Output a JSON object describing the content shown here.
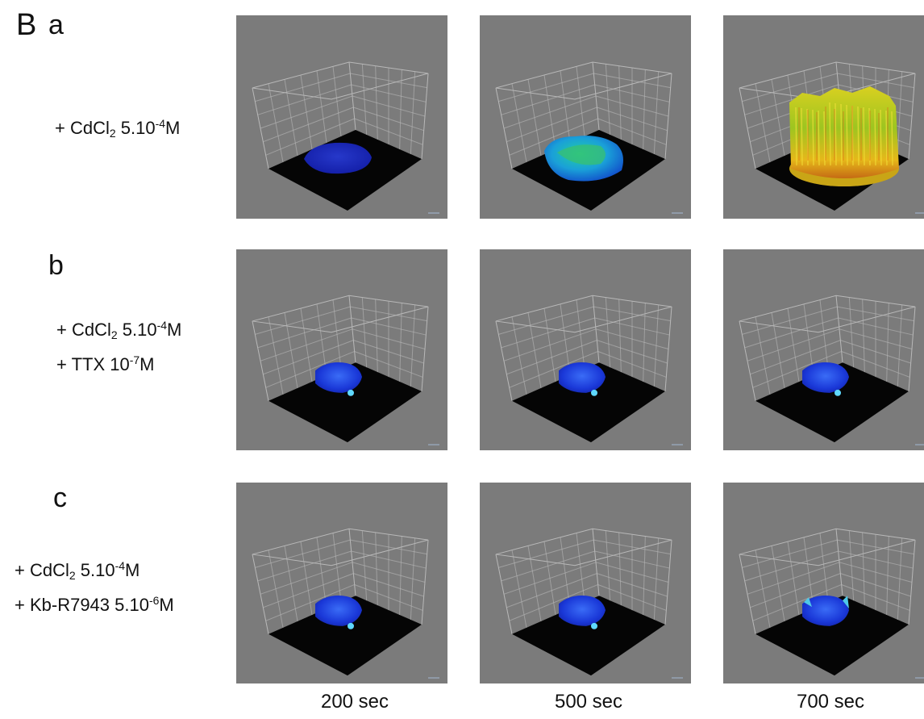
{
  "figure": {
    "panel_label": "B",
    "rows": [
      {
        "letter": "a",
        "conditions": [
          {
            "prefix": "+ CdCl",
            "sub": "2",
            "mid": " 5.10",
            "sup": "-4",
            "suffix": "M"
          }
        ],
        "surfaces": [
          "low-flat",
          "medium",
          "high"
        ]
      },
      {
        "letter": "b",
        "conditions": [
          {
            "prefix": "+ CdCl",
            "sub": "2",
            "mid": " 5.10",
            "sup": "-4",
            "suffix": "M"
          },
          {
            "prefix": "+ TTX",
            "sub": "",
            "mid": " 10",
            "sup": "-7",
            "suffix": "M"
          }
        ],
        "surfaces": [
          "low",
          "low",
          "low"
        ]
      },
      {
        "letter": "c",
        "conditions": [
          {
            "prefix": "+ CdCl",
            "sub": "2",
            "mid": " 5.10",
            "sup": "-4",
            "suffix": "M"
          },
          {
            "prefix": "+ Kb-R7943",
            "sub": "",
            "mid": " 5.10",
            "sup": "-6",
            "suffix": "M"
          }
        ],
        "surfaces": [
          "low",
          "low",
          "low-edge"
        ]
      }
    ],
    "time_labels": [
      "200 sec",
      "500 sec",
      "700 sec"
    ],
    "colors": {
      "tile_background": "#7b7b7b",
      "floor": "#050505",
      "grid": "#c8c8c8"
    }
  }
}
